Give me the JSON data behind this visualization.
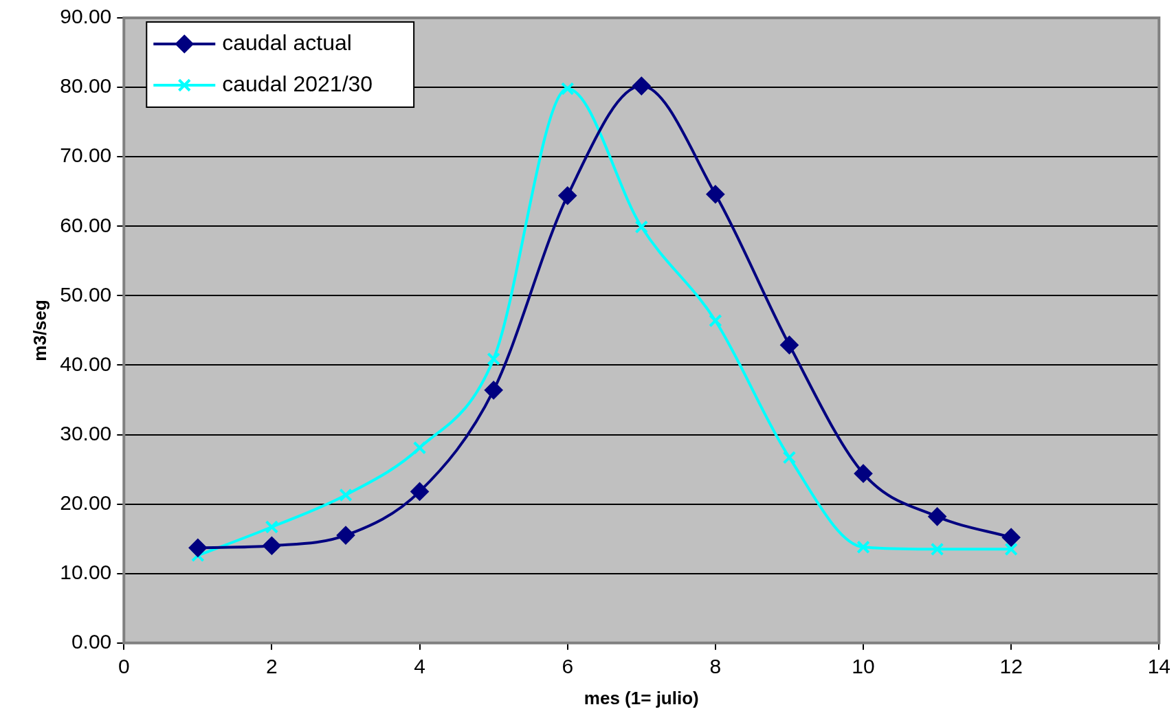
{
  "chart_data": {
    "type": "line",
    "xlabel": "mes (1= julio)",
    "ylabel": "m3/seg",
    "x": [
      1,
      2,
      3,
      4,
      5,
      6,
      7,
      8,
      9,
      10,
      11,
      12
    ],
    "series": [
      {
        "name": "caudal actual",
        "color": "#000080",
        "marker": "diamond",
        "values": [
          13.7,
          14.0,
          15.5,
          21.8,
          36.4,
          64.4,
          80.2,
          64.6,
          42.9,
          24.4,
          18.2,
          15.2
        ]
      },
      {
        "name": "caudal 2021/30",
        "color": "#00ffff",
        "marker": "cross",
        "values": [
          12.6,
          16.7,
          21.3,
          28.1,
          40.9,
          79.8,
          59.9,
          46.4,
          26.7,
          13.8,
          13.5,
          13.5
        ]
      }
    ],
    "xlim": [
      0,
      14
    ],
    "xticks": [
      0,
      2,
      4,
      6,
      8,
      10,
      12,
      14
    ],
    "ylim": [
      0,
      90
    ],
    "yticks": [
      {
        "value": 0,
        "label": "0.00"
      },
      {
        "value": 10,
        "label": "10.00"
      },
      {
        "value": 20,
        "label": "20.00"
      },
      {
        "value": 30,
        "label": "30.00"
      },
      {
        "value": 40,
        "label": "40.00"
      },
      {
        "value": 50,
        "label": "50.00"
      },
      {
        "value": 60,
        "label": "60.00"
      },
      {
        "value": 70,
        "label": "70.00"
      },
      {
        "value": 80,
        "label": "80.00"
      },
      {
        "value": 90,
        "label": "90.00"
      }
    ],
    "grid": "y",
    "legend": "top left",
    "line_style": "solid"
  }
}
